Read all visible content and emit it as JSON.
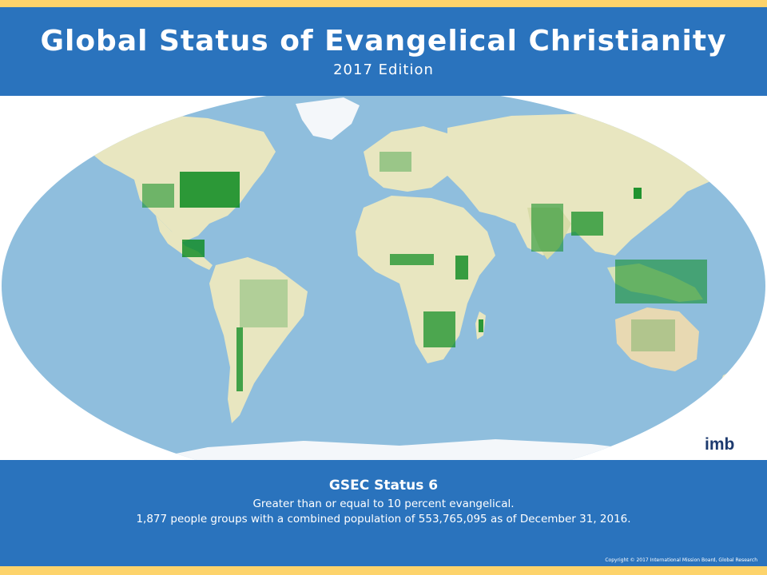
{
  "header": {
    "title": "Global Status of Evangelical Christianity",
    "subtitle": "2017 Edition"
  },
  "map": {
    "ocean_color": "#8fbedd",
    "land_color": "#e8e6c0",
    "ice_color": "#f4f7fa",
    "marker_color": "#0a8a1f"
  },
  "logo": {
    "text": "imb"
  },
  "footer": {
    "status_heading": "GSEC Status 6",
    "status_description": "Greater than or equal to 10 percent evangelical.",
    "population_text": "1,877 people groups with a combined population of 553,765,095 as of December 31, 2016.",
    "copyright": "Copyright © 2017 International Mission Board, Global Research"
  },
  "colors": {
    "header_bg": "#2a73bd",
    "accent_strip": "#fdd36b"
  }
}
